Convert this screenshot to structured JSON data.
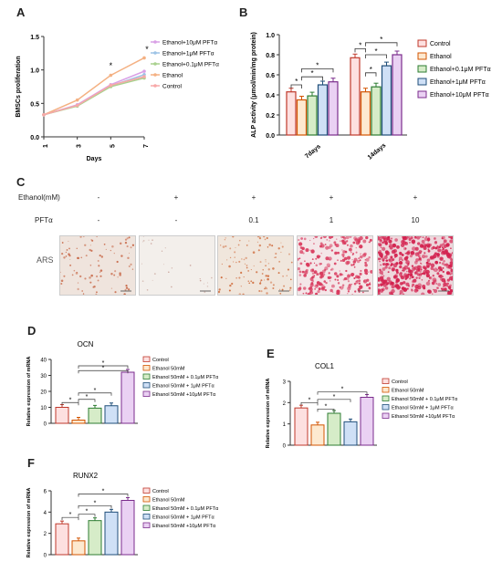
{
  "panels": {
    "a": "A",
    "b": "B",
    "c": "C",
    "d": "D",
    "e": "E",
    "f": "F"
  },
  "colors": {
    "control": "#f4b183",
    "ethanol": "#f7a8a8",
    "pft01": "#a9d18e",
    "pft1": "#9dc3e6",
    "pft10": "#d9a0e6",
    "barControl": "#fde0e0",
    "barEthanol": "#fde9d0",
    "barPft01": "#d6ecc8",
    "barPft1": "#cfe0f6",
    "barPft10": "#ead1f3"
  },
  "panelC": {
    "rows": [
      "Ethanol(mM)",
      "PFTα",
      "ARS"
    ],
    "ethanol": [
      "-",
      "+",
      "+",
      "+",
      "+"
    ],
    "pft": [
      "-",
      "-",
      "0.1",
      "1",
      "10"
    ]
  },
  "chart_data": [
    {
      "id": "A",
      "type": "line",
      "x": [
        1,
        3,
        5,
        7
      ],
      "xlabel": "Days",
      "ylabel": "BMSCs proliferation",
      "ylim": [
        0,
        1.5
      ],
      "yticks": [
        "0.0",
        "0.5",
        "1.0",
        "1.5"
      ],
      "series": [
        {
          "name": "Ethanol+10μM PFTα",
          "values": [
            0.33,
            0.48,
            0.78,
            0.98
          ]
        },
        {
          "name": "Ethanol+1μM PFTα",
          "values": [
            0.33,
            0.47,
            0.76,
            0.93
          ]
        },
        {
          "name": "Ethanol+0.1μM PFTα",
          "values": [
            0.33,
            0.46,
            0.75,
            0.88
          ]
        },
        {
          "name": "Ethanol",
          "values": [
            0.33,
            0.55,
            0.92,
            1.18
          ]
        },
        {
          "name": "Control",
          "values": [
            0.33,
            0.47,
            0.77,
            0.9
          ]
        }
      ],
      "annotations": [
        "*",
        "*"
      ]
    },
    {
      "id": "B",
      "type": "bar",
      "categories": [
        "7days",
        "14days"
      ],
      "ylabel": "ALP activity (μmol/min/mg protein)",
      "ylim": [
        0,
        1.0
      ],
      "yticks": [
        "0.0",
        "0.2",
        "0.4",
        "0.6",
        "0.8",
        "1.0"
      ],
      "series": [
        {
          "name": "Control",
          "values": [
            0.43,
            0.77
          ]
        },
        {
          "name": "Ethanol",
          "values": [
            0.35,
            0.43
          ]
        },
        {
          "name": "Ethanol+0.1μM PFTα",
          "values": [
            0.39,
            0.48
          ]
        },
        {
          "name": "Ethanol+1μM PFTα",
          "values": [
            0.5,
            0.69
          ]
        },
        {
          "name": "Ethanol+10μM PFTα",
          "values": [
            0.53,
            0.8
          ]
        }
      ],
      "annotations": [
        "*",
        "*",
        "*",
        "*",
        "*",
        "*",
        "*"
      ]
    },
    {
      "id": "D",
      "type": "bar",
      "title": "OCN",
      "ylabel": "Relative expression of mRNA",
      "ylim": [
        0,
        40
      ],
      "yticks": [
        "0",
        "10",
        "20",
        "30",
        "40"
      ],
      "categories": [
        "Control",
        "Ethanol 50mM",
        "Ethanol 50mM + 0.1μM PFTα",
        "Ethanol 50mM + 1μM PFTα",
        "Ethanol 50mM +10μM PFTα"
      ],
      "values": [
        10,
        2,
        9.5,
        11,
        32
      ],
      "annotations": [
        "*",
        "*",
        "*",
        "*",
        "*"
      ]
    },
    {
      "id": "E",
      "type": "bar",
      "title": "COL1",
      "ylabel": "Relative expression of mRNA",
      "ylim": [
        0,
        3
      ],
      "yticks": [
        "0",
        "1",
        "2",
        "3"
      ],
      "categories": [
        "Control",
        "Ethanol 50mM",
        "Ethanol 50mM + 0.1μM PFTα",
        "Ethanol 50mM + 1μM PFTα",
        "Ethanol 50mM +10μM PFTα"
      ],
      "values": [
        1.75,
        0.95,
        1.5,
        1.1,
        2.25
      ],
      "annotations": [
        "*",
        "*",
        "*",
        "*"
      ]
    },
    {
      "id": "F",
      "type": "bar",
      "title": "RUNX2",
      "ylabel": "Relative expression of mRNA",
      "ylim": [
        0,
        6
      ],
      "yticks": [
        "0",
        "2",
        "4",
        "6"
      ],
      "categories": [
        "Control",
        "Ethanol 50mM",
        "Ethanol 50mM + 0.1μM PFTα",
        "Ethanol 50mM + 1μM PFTα",
        "Ethanol 50mM +10μM PFTα"
      ],
      "values": [
        2.9,
        1.3,
        3.2,
        4.0,
        5.1
      ],
      "annotations": [
        "*",
        "*",
        "*",
        "*"
      ]
    }
  ]
}
